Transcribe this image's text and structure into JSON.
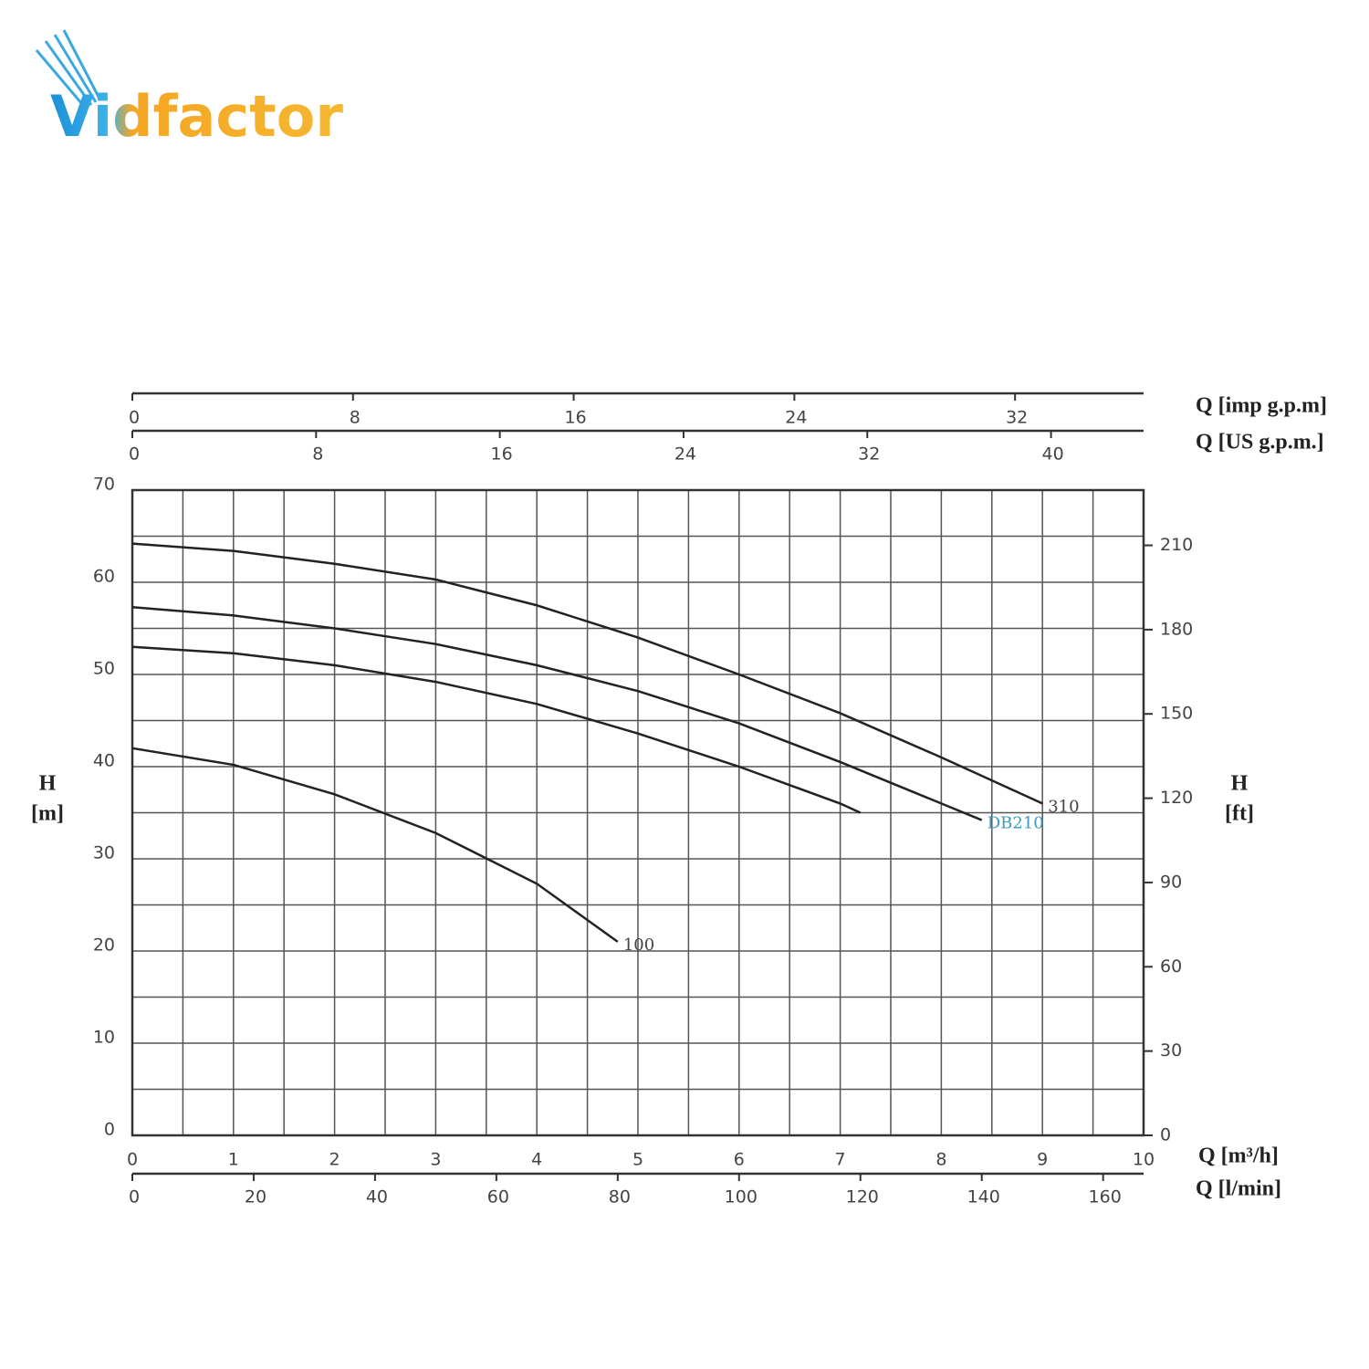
{
  "logo": "Vidfactor",
  "chart_data": {
    "type": "line",
    "xlabel": "Q [m³/h]",
    "xlim": [
      0,
      10
    ],
    "xticks": [
      0,
      1,
      2,
      3,
      4,
      5,
      6,
      7,
      8,
      9,
      10
    ],
    "xminorticks": [
      0.5,
      1.5,
      2.5,
      3.5,
      4.5,
      5.5,
      6.5,
      7.5,
      8.5,
      9.5
    ],
    "ylabel": [
      "H",
      "[m]"
    ],
    "ylim": [
      0,
      70
    ],
    "yticks": [
      0,
      10,
      20,
      30,
      40,
      50,
      60,
      70
    ],
    "yminorticks": [
      5,
      15,
      25,
      35,
      45,
      55,
      65
    ],
    "y2label": [
      "H",
      "[ft]"
    ],
    "y2lim": [
      0,
      229.66
    ],
    "y2ticks": [
      0,
      30,
      60,
      90,
      120,
      150,
      180,
      210
    ],
    "secondary_x_axes": [
      {
        "label": "Q [l/min]",
        "position": "bottom",
        "lim": [
          0,
          166.67
        ],
        "ticks": [
          0,
          20,
          40,
          60,
          80,
          100,
          120,
          140,
          160
        ]
      },
      {
        "label": "Q [US g.p.m.]",
        "position": "top",
        "lim": [
          0,
          44.03
        ],
        "ticks": [
          0,
          8,
          16,
          24,
          32,
          40
        ]
      },
      {
        "label": "Q [imp g.p.m]",
        "position": "top",
        "lim": [
          0,
          36.66
        ],
        "ticks": [
          0,
          8,
          16,
          24,
          32
        ]
      }
    ],
    "grid": true,
    "series": [
      {
        "name": "310",
        "color": "#222222",
        "label_color": "#444444",
        "x": [
          0,
          1,
          2,
          3,
          4,
          5,
          6,
          7,
          8,
          9
        ],
        "values": [
          64.2,
          63.4,
          62,
          60.3,
          57.5,
          54,
          50,
          45.8,
          41,
          36
        ]
      },
      {
        "name": "DB210",
        "color": "#222222",
        "label_color": "#3a9bbf",
        "x": [
          0,
          1,
          2,
          3,
          4,
          5,
          6,
          7,
          8,
          8.4
        ],
        "values": [
          57.3,
          56.4,
          55,
          53.3,
          51,
          48.2,
          44.7,
          40.5,
          36,
          34.2
        ]
      },
      {
        "color": "#222222",
        "x": [
          0,
          1,
          2,
          3,
          4,
          5,
          6,
          7,
          7.2
        ],
        "values": [
          53,
          52.3,
          51,
          49.2,
          46.8,
          43.6,
          40,
          36,
          35
        ]
      },
      {
        "name": "100",
        "color": "#222222",
        "label_color": "#444444",
        "x": [
          0,
          1,
          2,
          3,
          4,
          4.8
        ],
        "values": [
          42,
          40.2,
          37,
          32.8,
          27.3,
          21
        ]
      }
    ]
  }
}
